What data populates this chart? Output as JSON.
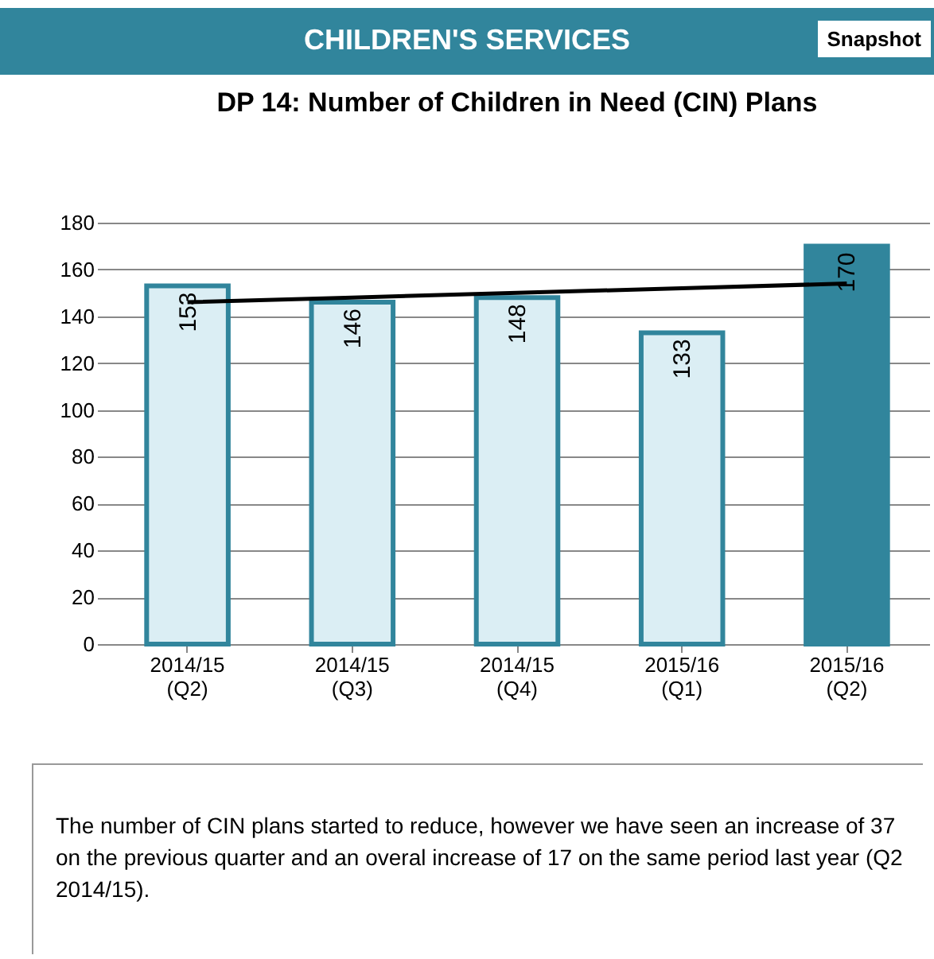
{
  "chart_data": {
    "type": "bar",
    "title": "DP 14: Number of Children in Need (CIN) Plans",
    "categories": [
      "2014/15 (Q2)",
      "2014/15 (Q3)",
      "2014/15 (Q4)",
      "2015/16 (Q1)",
      "2015/16 (Q2)"
    ],
    "series": [
      {
        "colors": [
          "#dbeef4",
          "#dbeef4",
          "#dbeef4",
          "#dbeef4",
          "#31859c"
        ],
        "values": [
          153,
          146,
          148,
          133,
          170
        ],
        "value_labels": [
          "153",
          "146",
          "148",
          "133",
          "170"
        ]
      },
      {
        "type": "line",
        "color": "#000000",
        "values": [
          146,
          148,
          150,
          152,
          154
        ]
      }
    ],
    "ylim": [
      0,
      180
    ],
    "yticks": [
      0,
      20,
      40,
      60,
      80,
      100,
      120,
      140,
      160,
      180
    ],
    "grid": "y",
    "annotations": [
      "CHILDREN'S SERVICES",
      "Snapshot",
      "The number of CIN plans started to reduce, however we have seen an increase of 37 on the previous quarter and an overal increase of 17 on the same period last year (Q2 2014/15)."
    ]
  }
}
